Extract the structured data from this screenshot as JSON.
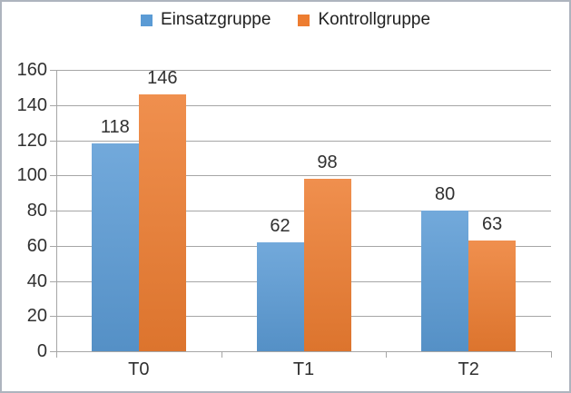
{
  "chart_data": {
    "type": "bar",
    "categories": [
      "T0",
      "T1",
      "T2"
    ],
    "series": [
      {
        "name": "Einsatzgruppe",
        "color": "#5B9BD5",
        "values": [
          118,
          62,
          80
        ]
      },
      {
        "name": "Kontrollgruppe",
        "color": "#ED7D31",
        "values": [
          146,
          98,
          63
        ]
      }
    ],
    "ylim": [
      0,
      160
    ],
    "yticks": [
      0,
      20,
      40,
      60,
      80,
      100,
      120,
      140,
      160
    ],
    "grid": true,
    "legend_position": "top",
    "data_labels": true,
    "xlabel": "",
    "ylabel": ""
  },
  "colors": {
    "gridline": "#a6a6a6",
    "axis": "#a6a6a6",
    "text": "#303030",
    "border": "#aeb4be",
    "background": "#ffffff"
  }
}
